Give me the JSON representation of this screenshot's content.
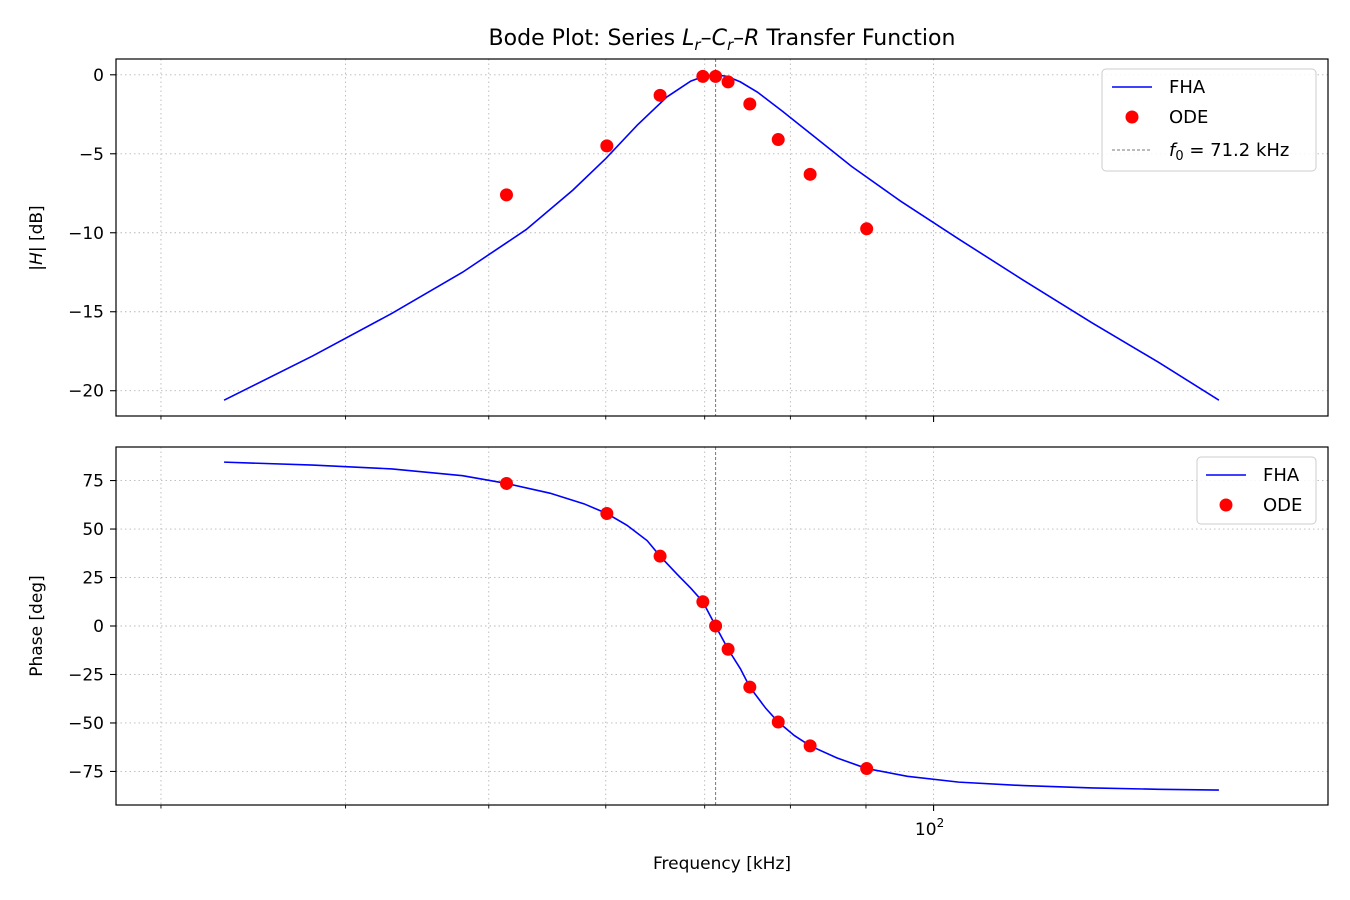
{
  "chart_data": [
    {
      "type": "line",
      "panel": "magnitude",
      "title_parts": [
        "Bode Plot: Series ",
        "L",
        "r",
        "–",
        "C",
        "r",
        "–",
        "R",
        " Transfer Function"
      ],
      "ylabel_parts": [
        "|",
        "H",
        "| [dB]"
      ],
      "ylim": [
        -21.6,
        1.0
      ],
      "yticks": [
        0,
        -5,
        -10,
        -15,
        -20
      ],
      "ytick_labels": [
        "0",
        "−5",
        "−10",
        "−15",
        "−20"
      ],
      "xscale": "log",
      "xlim": [
        27.97,
        184.9
      ],
      "grid": true,
      "legend_placement": "top-right",
      "f0": 71.2,
      "legend": {
        "fha": "FHA",
        "ode": "ODE",
        "f0_symbol": "f",
        "f0_sub": "0",
        "f0_text": " = 71.2 kHz"
      },
      "series": [
        {
          "name": "FHA",
          "kind": "line",
          "color": "#0000ff",
          "x": [
            33.1,
            38.0,
            43.0,
            48.0,
            53.0,
            57.0,
            60.0,
            63.0,
            66.0,
            68.5,
            70.0,
            71.2,
            72.5,
            74.0,
            76.0,
            79.0,
            83.0,
            88.0,
            95.0,
            104.0,
            115.0,
            128.0,
            142.0,
            156.0
          ],
          "y": [
            -20.6,
            -17.8,
            -15.1,
            -12.5,
            -9.8,
            -7.3,
            -5.3,
            -3.2,
            -1.4,
            -0.4,
            -0.08,
            0.0,
            -0.1,
            -0.45,
            -1.1,
            -2.3,
            -3.9,
            -5.8,
            -8.0,
            -10.4,
            -13.0,
            -15.7,
            -18.2,
            -20.6
          ]
        },
        {
          "name": "ODE",
          "kind": "scatter",
          "color": "#ff0000",
          "x": [
            51.4,
            60.1,
            65.3,
            69.8,
            71.2,
            72.6,
            75.1,
            78.5,
            82.5,
            90.1
          ],
          "y": [
            -7.6,
            -4.5,
            -1.3,
            -0.1,
            -0.1,
            -0.45,
            -1.85,
            -4.1,
            -6.3,
            -9.75
          ]
        }
      ]
    },
    {
      "type": "line",
      "panel": "phase",
      "ylabel": "Phase [deg]",
      "xlabel": "Frequency [kHz]",
      "ylim": [
        -92.3,
        92.3
      ],
      "yticks": [
        75,
        50,
        25,
        0,
        -25,
        -50,
        -75
      ],
      "ytick_labels": [
        "75",
        "50",
        "25",
        "0",
        "−25",
        "−50",
        "−75"
      ],
      "xscale": "log",
      "xlim": [
        27.97,
        184.9
      ],
      "xtick_major": 100,
      "xtick_major_label_base": "10",
      "xtick_major_label_exp": "2",
      "xtick_minor": [
        30,
        40,
        50,
        60,
        70,
        80,
        90,
        200
      ],
      "grid": true,
      "legend_placement": "top-right",
      "f0": 71.2,
      "legend": {
        "fha": "FHA",
        "ode": "ODE"
      },
      "series": [
        {
          "name": "FHA",
          "kind": "line",
          "color": "#0000ff",
          "x": [
            33.1,
            38.0,
            43.0,
            48.0,
            51.4,
            55.0,
            58.0,
            60.1,
            62.0,
            64.0,
            65.3,
            67.0,
            68.5,
            69.8,
            71.2,
            72.6,
            74.0,
            75.1,
            77.0,
            78.5,
            80.5,
            82.5,
            86.0,
            90.1,
            96.0,
            104.0,
            115.0,
            128.0,
            142.0,
            156.0
          ],
          "y": [
            84.5,
            83.0,
            81.0,
            77.5,
            73.5,
            68.5,
            63.0,
            58.0,
            52.0,
            44.0,
            36.0,
            27.0,
            19.5,
            12.5,
            0.0,
            -12.0,
            -22.0,
            -31.5,
            -42.5,
            -49.5,
            -56.5,
            -61.8,
            -68.0,
            -73.5,
            -77.5,
            -80.5,
            -82.3,
            -83.5,
            -84.2,
            -84.6
          ]
        },
        {
          "name": "ODE",
          "kind": "scatter",
          "color": "#ff0000",
          "x": [
            51.4,
            60.1,
            65.3,
            69.8,
            71.2,
            72.6,
            75.1,
            78.5,
            82.5,
            90.1
          ],
          "y": [
            73.5,
            58.0,
            36.0,
            12.5,
            0.0,
            -12.0,
            -31.5,
            -49.5,
            -61.8,
            -73.5
          ]
        }
      ]
    }
  ]
}
